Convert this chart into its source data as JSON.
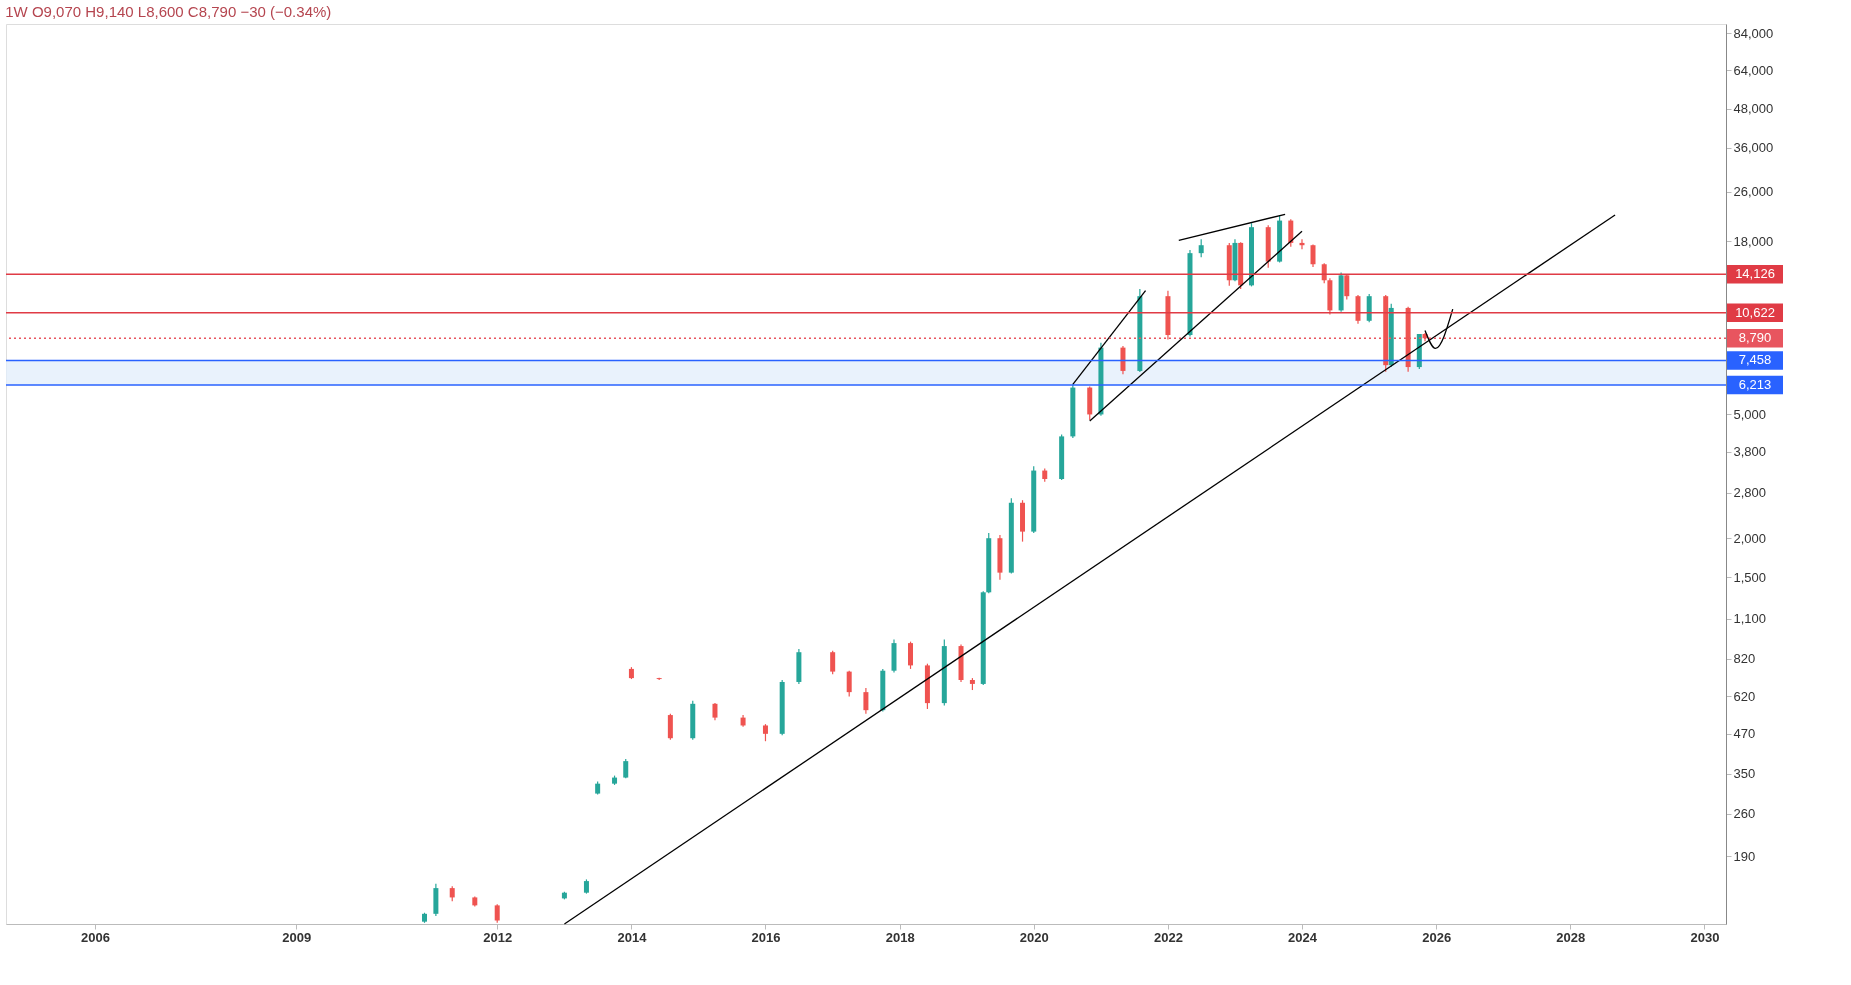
{
  "chart_data": {
    "type": "candlestick",
    "title": "1W  O9,070  H9,140  L8,600  C8,790  −30 (−0.34%)",
    "x": [
      "2010-12",
      "2011-02",
      "2011-05",
      "2011-09",
      "2012-01",
      "2013-01",
      "2013-05",
      "2013-07",
      "2013-10",
      "2013-12",
      "2014-01",
      "2014-06",
      "2014-08",
      "2014-12",
      "2015-04",
      "2015-09",
      "2016-01",
      "2016-04",
      "2016-07",
      "2017-01",
      "2017-04",
      "2017-07",
      "2017-10",
      "2017-12",
      "2018-03",
      "2018-06",
      "2018-09",
      "2018-12",
      "2019-02",
      "2019-04",
      "2019-05",
      "2019-07",
      "2019-09",
      "2019-11",
      "2020-01",
      "2020-03",
      "2020-06",
      "2020-08",
      "2020-11",
      "2021-01",
      "2021-05",
      "2021-08",
      "2022-01",
      "2022-05",
      "2022-07",
      "2022-12",
      "2023-01",
      "2023-02",
      "2023-04",
      "2023-07",
      "2023-09",
      "2023-11",
      "2024-01",
      "2024-03",
      "2024-05",
      "2024-06",
      "2024-08",
      "2024-09",
      "2024-11",
      "2025-01",
      "2025-04",
      "2025-05",
      "2025-08",
      "2025-10",
      "2025-11"
    ],
    "ohlc": [
      [
        117,
        125,
        116,
        124
      ],
      [
        124,
        155,
        122,
        150
      ],
      [
        150,
        152,
        136,
        140
      ],
      [
        140,
        141,
        131,
        132
      ],
      [
        132,
        133,
        116,
        118
      ],
      [
        139,
        146,
        138,
        145
      ],
      [
        145,
        160,
        144,
        158
      ],
      [
        302,
        330,
        300,
        325
      ],
      [
        325,
        345,
        322,
        340
      ],
      [
        340,
        390,
        338,
        384
      ],
      [
        760,
        770,
        705,
        710
      ],
      [
        710,
        712,
        700,
        705
      ],
      [
        540,
        545,
        450,
        455
      ],
      [
        455,
        600,
        450,
        587
      ],
      [
        587,
        590,
        520,
        530
      ],
      [
        530,
        540,
        495,
        500
      ],
      [
        500,
        505,
        445,
        470
      ],
      [
        470,
        700,
        465,
        690
      ],
      [
        690,
        880,
        680,
        860
      ],
      [
        860,
        870,
        730,
        745
      ],
      [
        745,
        750,
        620,
        640
      ],
      [
        640,
        660,
        545,
        560
      ],
      [
        560,
        760,
        555,
        750
      ],
      [
        750,
        945,
        740,
        920
      ],
      [
        920,
        930,
        760,
        780
      ],
      [
        780,
        790,
        565,
        590
      ],
      [
        590,
        945,
        580,
        900
      ],
      [
        900,
        910,
        690,
        700
      ],
      [
        700,
        710,
        650,
        680
      ],
      [
        680,
        1350,
        675,
        1340
      ],
      [
        1340,
        2080,
        1330,
        2000
      ],
      [
        2000,
        2050,
        1470,
        1550
      ],
      [
        1550,
        2690,
        1540,
        2600
      ],
      [
        2600,
        2650,
        1950,
        2100
      ],
      [
        2100,
        3410,
        2080,
        3300
      ],
      [
        3300,
        3350,
        3040,
        3100
      ],
      [
        3100,
        4310,
        3080,
        4250
      ],
      [
        4250,
        6250,
        4200,
        6100
      ],
      [
        6100,
        6150,
        4800,
        5000
      ],
      [
        5000,
        8500,
        4950,
        8200
      ],
      [
        8200,
        8300,
        6730,
        6900
      ],
      [
        6900,
        12650,
        6850,
        12000
      ],
      [
        12000,
        12500,
        8700,
        9000
      ],
      [
        9000,
        16900,
        8900,
        16500
      ],
      [
        16500,
        18300,
        16000,
        17500
      ],
      [
        17500,
        17800,
        12970,
        13500
      ],
      [
        13500,
        18300,
        13400,
        17800
      ],
      [
        17800,
        17900,
        12650,
        13000
      ],
      [
        13000,
        20600,
        12900,
        20000
      ],
      [
        20000,
        20300,
        14800,
        15500
      ],
      [
        15500,
        21800,
        15400,
        21000
      ],
      [
        21000,
        21200,
        17300,
        17800
      ],
      [
        17800,
        18300,
        17000,
        17500
      ],
      [
        17500,
        17600,
        14900,
        15200
      ],
      [
        15200,
        15300,
        13200,
        13500
      ],
      [
        13500,
        13700,
        10480,
        10800
      ],
      [
        10800,
        14300,
        10700,
        14000
      ],
      [
        14000,
        14100,
        11700,
        12000
      ],
      [
        12000,
        12100,
        9780,
        10000
      ],
      [
        10000,
        12200,
        9900,
        12000
      ],
      [
        12000,
        12100,
        6860,
        7200
      ],
      [
        7200,
        11350,
        7100,
        11000
      ],
      [
        11000,
        11100,
        6860,
        7100
      ],
      [
        7100,
        9070,
        7000,
        9070
      ],
      [
        9070,
        9140,
        8600,
        8790
      ]
    ],
    "colors": [
      "#26a69a",
      "#26a69a",
      "#ef5350",
      "#ef5350",
      "#ef5350",
      "#26a69a",
      "#26a69a",
      "#26a69a",
      "#26a69a",
      "#26a69a",
      "#ef5350",
      "#ef5350",
      "#ef5350",
      "#26a69a",
      "#ef5350",
      "#ef5350",
      "#ef5350",
      "#26a69a",
      "#26a69a",
      "#ef5350",
      "#ef5350",
      "#ef5350",
      "#26a69a",
      "#26a69a",
      "#ef5350",
      "#ef5350",
      "#26a69a",
      "#ef5350",
      "#ef5350",
      "#26a69a",
      "#26a69a",
      "#ef5350",
      "#26a69a",
      "#ef5350",
      "#26a69a",
      "#ef5350",
      "#26a69a",
      "#26a69a",
      "#ef5350",
      "#26a69a",
      "#ef5350",
      "#26a69a",
      "#ef5350",
      "#26a69a",
      "#26a69a",
      "#ef5350",
      "#26a69a",
      "#ef5350",
      "#26a69a",
      "#ef5350",
      "#26a69a",
      "#ef5350",
      "#ef5350",
      "#ef5350",
      "#ef5350",
      "#ef5350",
      "#26a69a",
      "#ef5350",
      "#ef5350",
      "#26a69a",
      "#ef5350",
      "#26a69a",
      "#ef5350",
      "#26a69a",
      "#ef5350"
    ],
    "series": [
      {
        "type": "line",
        "color": "#000000",
        "x": [
          "2013-01",
          "2028-09"
        ],
        "values": [
          115,
          21900
        ]
      },
      {
        "type": "line",
        "color": "#000000",
        "x": [
          "2020-08",
          "2021-09"
        ],
        "values": [
          6250,
          12500
        ]
      },
      {
        "type": "line",
        "color": "#000000",
        "x": [
          "2020-11",
          "2024-01"
        ],
        "values": [
          4760,
          19400
        ]
      },
      {
        "type": "line",
        "color": "#000000",
        "x": [
          "2022-03",
          "2023-10"
        ],
        "values": [
          18150,
          22000
        ]
      },
      {
        "type": "line",
        "color": "#000000",
        "x": [
          "2025-11",
          "2025-12-28",
          "2026-04"
        ],
        "values": [
          9300,
          8150,
          10900
        ]
      }
    ],
    "ref_lines": [
      {
        "axis": "y",
        "value": 14126,
        "label": "14,126",
        "color": "#e03b45"
      },
      {
        "axis": "y",
        "value": 10622,
        "label": "10,622",
        "color": "#e03b45"
      },
      {
        "axis": "y",
        "value": 8790,
        "label": "8,790",
        "color": "#e8555f",
        "line_style": "dotted"
      },
      {
        "axis": "y",
        "value": 7458,
        "label": "7,458",
        "color": "#2962ff"
      },
      {
        "axis": "y",
        "value": 6213,
        "label": "6,213",
        "color": "#2962ff"
      }
    ],
    "bands": [
      {
        "axis": "y",
        "from": 6213,
        "to": 7458,
        "color": "#e3effb"
      }
    ],
    "log": true,
    "grid": false,
    "xlim": [
      "2004-10",
      "2030-04"
    ],
    "xticks": [
      "2006",
      "2009",
      "2012",
      "2014",
      "2016",
      "2018",
      "2020",
      "2022",
      "2024",
      "2026",
      "2028",
      "2030"
    ],
    "ylim": [
      115,
      90000
    ],
    "yticks": [
      190,
      260,
      350,
      470,
      620,
      820,
      {
        "value": 1100,
        "label": "1,100"
      },
      {
        "value": 1500,
        "label": "1,500"
      },
      {
        "value": 2000,
        "label": "2,000"
      },
      {
        "value": 2800,
        "label": "2,800"
      },
      {
        "value": 3800,
        "label": "3,800"
      },
      {
        "value": 5000,
        "label": "5,000"
      },
      {
        "value": 18000,
        "label": "18,000"
      },
      {
        "value": 26000,
        "label": "26,000"
      },
      {
        "value": 36000,
        "label": "36,000"
      },
      {
        "value": 48000,
        "label": "48,000"
      },
      {
        "value": 64000,
        "label": "64,000"
      },
      {
        "value": 84000,
        "label": "84,000"
      }
    ]
  }
}
